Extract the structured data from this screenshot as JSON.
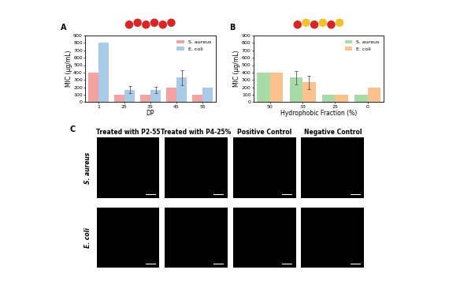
{
  "chart_data": [
    {
      "type": "bar",
      "panel_label": "A",
      "x_label": "DP",
      "y_label": "MIC (μg/mL)",
      "categories": [
        "1",
        "25",
        "35",
        "45",
        "55"
      ],
      "series": [
        {
          "name": "S. aureus",
          "color": "#f4a3a3",
          "values": [
            400,
            100,
            100,
            200,
            100
          ],
          "error": [
            0,
            0,
            0,
            0,
            0
          ]
        },
        {
          "name": "E. coli",
          "color": "#a9cbe8",
          "values": [
            800,
            167,
            167,
            333,
            200
          ],
          "error": [
            0,
            50,
            45,
            100,
            0
          ]
        }
      ],
      "ylim": [
        0,
        900
      ],
      "yticks": [
        0,
        100,
        200,
        300,
        400,
        500,
        600,
        700,
        800,
        900
      ],
      "legend": "upper right"
    },
    {
      "type": "bar",
      "panel_label": "B",
      "x_label": "Hydrophobic Fraction (%)",
      "y_label": "MIC (μg/mL)",
      "categories": [
        "50",
        "33",
        "25",
        "0"
      ],
      "series": [
        {
          "name": "S. aureus",
          "color": "#a8dba8",
          "values": [
            400,
            333,
            100,
            100
          ],
          "error": [
            0,
            90,
            0,
            0
          ]
        },
        {
          "name": "E. coli",
          "color": "#fbc28e",
          "values": [
            400,
            267,
            100,
            200
          ],
          "error": [
            0,
            90,
            0,
            0
          ]
        }
      ],
      "ylim": [
        0,
        900
      ],
      "yticks": [
        0,
        100,
        200,
        300,
        400,
        500,
        600,
        700,
        800,
        900
      ],
      "legend": "upper right"
    }
  ],
  "image_grid": {
    "panel_label": "C",
    "columns": [
      "Treated with P2-55",
      "Treated with P4-25%",
      "Positive Control",
      "Negative Control"
    ],
    "rows": [
      "S. aureus",
      "E. coli"
    ]
  }
}
